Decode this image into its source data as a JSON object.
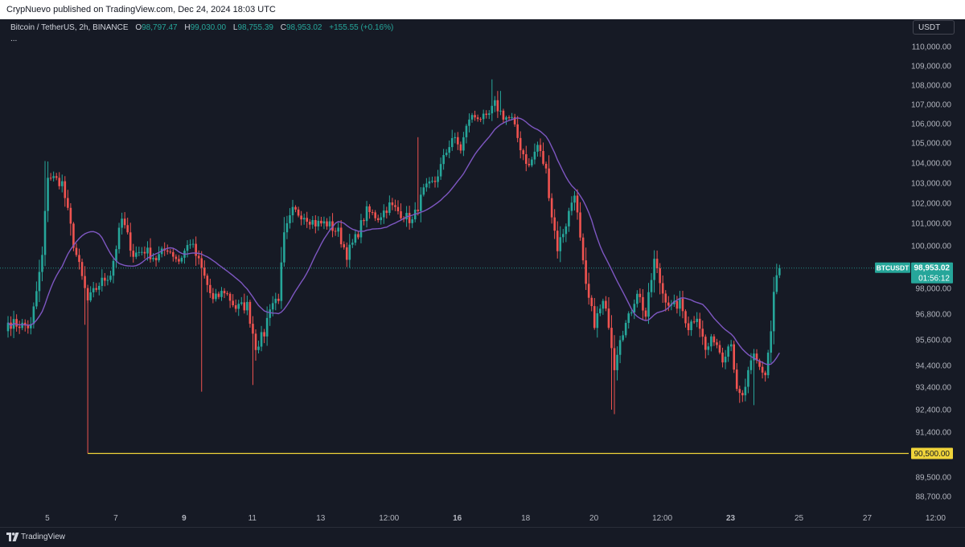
{
  "header": {
    "publisher": "CrypNuevo published on TradingView.com, Dec 24, 2024 18:03 UTC"
  },
  "symbol": {
    "name": "Bitcoin / TetherUS, 2h, BINANCE",
    "open_label": "O",
    "open": "98,797.47",
    "high_label": "H",
    "high": "99,030.00",
    "low_label": "L",
    "low": "98,755.39",
    "close_label": "C",
    "close": "98,953.02",
    "change": "+155.55 (+0.16%)",
    "more": "..."
  },
  "currency_button": "USDT",
  "footer": {
    "brand": "TradingView"
  },
  "colors": {
    "background": "#161a25",
    "up": "#26a69a",
    "down": "#ef5350",
    "ma": "#7e57c2",
    "level": "#f0d43a",
    "grid_text": "#b2b5be"
  },
  "chart_data": {
    "type": "candlestick",
    "symbol": "BTCUSDT",
    "interval": "2h",
    "y_ticks": [
      {
        "v": 110000,
        "label": "110,000.00"
      },
      {
        "v": 109000,
        "label": "109,000.00"
      },
      {
        "v": 108000,
        "label": "108,000.00"
      },
      {
        "v": 107000,
        "label": "107,000.00"
      },
      {
        "v": 106000,
        "label": "106,000.00"
      },
      {
        "v": 105000,
        "label": "105,000.00"
      },
      {
        "v": 104000,
        "label": "104,000.00"
      },
      {
        "v": 103000,
        "label": "103,000.00"
      },
      {
        "v": 102000,
        "label": "102,000.00"
      },
      {
        "v": 101000,
        "label": "101,000.00"
      },
      {
        "v": 100000,
        "label": "100,000.00"
      },
      {
        "v": 98000,
        "label": "98,000.00"
      },
      {
        "v": 96800,
        "label": "96,800.00"
      },
      {
        "v": 95600,
        "label": "95,600.00"
      },
      {
        "v": 94400,
        "label": "94,400.00"
      },
      {
        "v": 93400,
        "label": "93,400.00"
      },
      {
        "v": 92400,
        "label": "92,400.00"
      },
      {
        "v": 91400,
        "label": "91,400.00"
      },
      {
        "v": 89500,
        "label": "89,500.00"
      },
      {
        "v": 88700,
        "label": "88,700.00"
      }
    ],
    "x_ticks": [
      {
        "label": "5",
        "i": 11,
        "bold": false
      },
      {
        "label": "7",
        "i": 35,
        "bold": false
      },
      {
        "label": "9",
        "i": 59,
        "bold": true
      },
      {
        "label": "11",
        "i": 83,
        "bold": false
      },
      {
        "label": "13",
        "i": 107,
        "bold": false
      },
      {
        "label": "12:00",
        "i": 131,
        "bold": false
      },
      {
        "label": "16",
        "i": 155,
        "bold": true
      },
      {
        "label": "18",
        "i": 179,
        "bold": false
      },
      {
        "label": "20",
        "i": 203,
        "bold": false
      },
      {
        "label": "12:00",
        "i": 227,
        "bold": false
      },
      {
        "label": "23",
        "i": 251,
        "bold": true
      },
      {
        "label": "25",
        "i": 275,
        "bold": false
      },
      {
        "label": "27",
        "i": 299,
        "bold": false
      },
      {
        "label": "12:00",
        "i": 323,
        "bold": false
      }
    ],
    "last_price": {
      "value": 98953.02,
      "label": "98,953.02",
      "symbol_label": "BTCUSDT",
      "countdown": "01:56:12"
    },
    "horizontal_level": {
      "value": 90500,
      "label": "90,500.00",
      "start_index": 28
    },
    "ma_length": 20,
    "anchors": [
      {
        "i": 0,
        "p": 96400
      },
      {
        "i": 8,
        "p": 96200
      },
      {
        "i": 12,
        "p": 99500
      },
      {
        "i": 14,
        "p": 103400
      },
      {
        "i": 19,
        "p": 103000
      },
      {
        "i": 23,
        "p": 100100
      },
      {
        "i": 28,
        "p": 97400
      },
      {
        "i": 32,
        "p": 98200
      },
      {
        "i": 36,
        "p": 98700
      },
      {
        "i": 40,
        "p": 101200
      },
      {
        "i": 44,
        "p": 99600
      },
      {
        "i": 48,
        "p": 99800
      },
      {
        "i": 52,
        "p": 99400
      },
      {
        "i": 56,
        "p": 99900
      },
      {
        "i": 60,
        "p": 99300
      },
      {
        "i": 64,
        "p": 100200
      },
      {
        "i": 68,
        "p": 98900
      },
      {
        "i": 72,
        "p": 97400
      },
      {
        "i": 76,
        "p": 97900
      },
      {
        "i": 80,
        "p": 97100
      },
      {
        "i": 84,
        "p": 97200
      },
      {
        "i": 87,
        "p": 95300
      },
      {
        "i": 90,
        "p": 95900
      },
      {
        "i": 92,
        "p": 97200
      },
      {
        "i": 95,
        "p": 97600
      },
      {
        "i": 97,
        "p": 100400
      },
      {
        "i": 100,
        "p": 101600
      },
      {
        "i": 104,
        "p": 101400
      },
      {
        "i": 108,
        "p": 101000
      },
      {
        "i": 112,
        "p": 101000
      },
      {
        "i": 116,
        "p": 100600
      },
      {
        "i": 119,
        "p": 99600
      },
      {
        "i": 122,
        "p": 100300
      },
      {
        "i": 126,
        "p": 101600
      },
      {
        "i": 130,
        "p": 101300
      },
      {
        "i": 134,
        "p": 101900
      },
      {
        "i": 138,
        "p": 101500
      },
      {
        "i": 142,
        "p": 101100
      },
      {
        "i": 146,
        "p": 102600
      },
      {
        "i": 150,
        "p": 103100
      },
      {
        "i": 153,
        "p": 104200
      },
      {
        "i": 156,
        "p": 105300
      },
      {
        "i": 159,
        "p": 104700
      },
      {
        "i": 162,
        "p": 106300
      },
      {
        "i": 165,
        "p": 106400
      },
      {
        "i": 168,
        "p": 106200
      },
      {
        "i": 171,
        "p": 107000
      },
      {
        "i": 174,
        "p": 106400
      },
      {
        "i": 177,
        "p": 106200
      },
      {
        "i": 180,
        "p": 104800
      },
      {
        "i": 183,
        "p": 103800
      },
      {
        "i": 186,
        "p": 104900
      },
      {
        "i": 189,
        "p": 103600
      },
      {
        "i": 191,
        "p": 101400
      },
      {
        "i": 193,
        "p": 99900
      },
      {
        "i": 196,
        "p": 101000
      },
      {
        "i": 199,
        "p": 102600
      },
      {
        "i": 201,
        "p": 100200
      },
      {
        "i": 203,
        "p": 98000
      },
      {
        "i": 206,
        "p": 96400
      },
      {
        "i": 209,
        "p": 97300
      },
      {
        "i": 211,
        "p": 96400
      },
      {
        "i": 213,
        "p": 94400
      },
      {
        "i": 215,
        "p": 95800
      },
      {
        "i": 218,
        "p": 96600
      },
      {
        "i": 221,
        "p": 97900
      },
      {
        "i": 224,
        "p": 96700
      },
      {
        "i": 227,
        "p": 99300
      },
      {
        "i": 230,
        "p": 97800
      },
      {
        "i": 233,
        "p": 97100
      },
      {
        "i": 236,
        "p": 97300
      },
      {
        "i": 239,
        "p": 96200
      },
      {
        "i": 242,
        "p": 96800
      },
      {
        "i": 245,
        "p": 95100
      },
      {
        "i": 248,
        "p": 95700
      },
      {
        "i": 251,
        "p": 94800
      },
      {
        "i": 254,
        "p": 95600
      },
      {
        "i": 256,
        "p": 93100
      },
      {
        "i": 258,
        "p": 92900
      },
      {
        "i": 260,
        "p": 94000
      },
      {
        "i": 262,
        "p": 94800
      },
      {
        "i": 264,
        "p": 94300
      },
      {
        "i": 266,
        "p": 94000
      },
      {
        "i": 268,
        "p": 96000
      },
      {
        "i": 269,
        "p": 97800
      },
      {
        "i": 270,
        "p": 98500
      },
      {
        "i": 271,
        "p": 98953
      }
    ]
  }
}
